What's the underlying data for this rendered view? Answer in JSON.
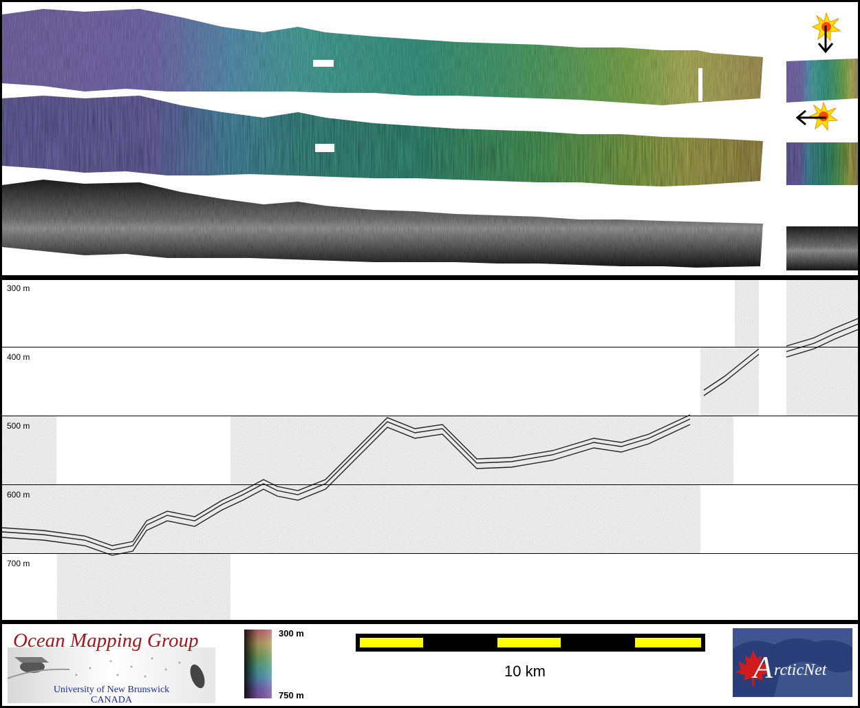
{
  "profile": {
    "depth_labels": [
      "300 m",
      "400 m",
      "500 m",
      "600 m",
      "700 m"
    ]
  },
  "footer": {
    "logo_title": "Ocean Mapping Group",
    "logo_university": "University of New Brunswick",
    "logo_country": "CANADA",
    "colorbar_top": "300 m",
    "colorbar_bottom": "750 m",
    "scale_label": "10 km",
    "arcticnet_logo": "ArcticNet"
  },
  "colors": {
    "frame": "#000000",
    "scale_bar_fill": "#ffff00",
    "logo_title": "#a5151b",
    "logo_subtitle": "#1a2a9a",
    "arcticnet_bg": "#2a3f7a",
    "maple_leaf": "#d11a1a"
  },
  "icons": [
    "sun-icon",
    "arrow-down-icon",
    "arrow-left-icon",
    "maple-leaf-icon",
    "sonar-fish-icon"
  ]
}
